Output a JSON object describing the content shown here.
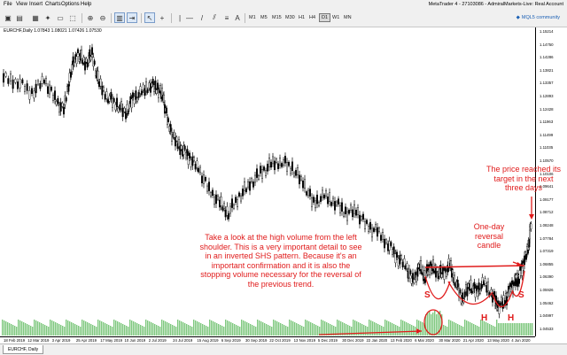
{
  "menu": [
    "File",
    "View",
    "Insert",
    "Charts",
    "Options",
    "Help"
  ],
  "window_title": "MetaTrader 4 - 27103086 - AdmiralMarkets-Live: Real Account",
  "timeframes": [
    "M1",
    "M5",
    "M15",
    "M30",
    "H1",
    "H4",
    "D1",
    "W1",
    "MN"
  ],
  "active_timeframe": "D1",
  "mql5_label": "MQL5 community",
  "chart_info": "EURCHF,Daily  1.07843 1.08021 1.07426 1.07530",
  "y_ticks": [
    "1.15214",
    "1.14750",
    "1.14286",
    "1.13821",
    "1.13357",
    "1.12893",
    "1.12428",
    "1.11963",
    "1.11499",
    "1.11035",
    "1.10570",
    "1.10106",
    "1.09641",
    "1.09177",
    "1.08712",
    "1.08248",
    "1.07784",
    "1.07319",
    "1.06855",
    "1.06390",
    "1.05926",
    "1.05462",
    "1.04997",
    "1.04533"
  ],
  "x_ticks": [
    "18 Feb 2019",
    "12 Mar 2019",
    "3 Apr 2019",
    "25 Apr 2019",
    "17 May 2019",
    "10 Jun 2019",
    "2 Jul 2019",
    "24 Jul 2019",
    "15 Aug 2019",
    "6 Sep 2019",
    "30 Sep 2019",
    "22 Oct 2019",
    "13 Nov 2019",
    "5 Dec 2019",
    "30 Dec 2019",
    "22 Jan 2020",
    "13 Feb 2020",
    "6 Mar 2020",
    "30 Mar 2020",
    "21 Apr 2020",
    "13 May 2020",
    "4 Jun 2020"
  ],
  "annotations": {
    "volume_note": "Take a look at the high volume from the left shoulder. This is a very important detail to see in an inverted SHS pattern. Because it's an important confirmation and it is also the stopping volume necessary for the reversal of the previous trend.",
    "reversal_note": "One-day reversal candle",
    "target_note": "The price reached its target in the next three days",
    "shoulder_left": "S",
    "shoulder_right": "S",
    "head_1": "H",
    "head_2": "H"
  },
  "tab_label": "EURCHF, Daily",
  "colors": {
    "annotation": "#e01b1b",
    "volume": "#7ec87e",
    "candle": "#000000",
    "link": "#1a5fb4"
  },
  "icons": [
    "new-chart-icon",
    "profiles-icon",
    "market-watch-icon",
    "navigator-icon",
    "terminal-icon",
    "tester-icon",
    "new-order-icon",
    "autotrading-icon",
    "bar-chart-icon",
    "candles-icon",
    "line-chart-icon",
    "zoom-in-icon",
    "zoom-out-icon",
    "tile-icon",
    "autoscroll-icon",
    "shift-icon",
    "periods-icon",
    "template-icon",
    "cursor-icon",
    "crosshair-icon",
    "vertical-line-icon",
    "horizontal-line-icon",
    "trendline-icon",
    "channel-icon",
    "fibonacci-icon",
    "text-icon",
    "arrows-icon"
  ]
}
